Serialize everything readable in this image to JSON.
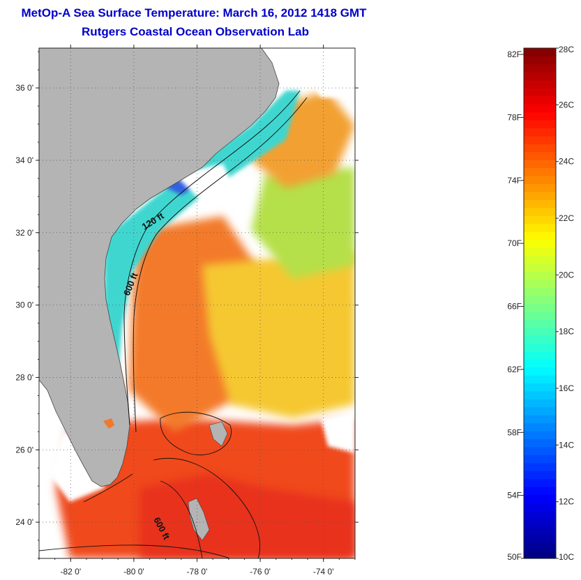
{
  "header": {
    "title": "MetOp-A Sea Surface Temperature:  March 16, 2012 1418 GMT",
    "subtitle": "Rutgers Coastal Ocean Observation Lab"
  },
  "map": {
    "lat_ticks": [
      {
        "value": 36,
        "label": "36 0'"
      },
      {
        "value": 34,
        "label": "34 0'"
      },
      {
        "value": 32,
        "label": "32 0'"
      },
      {
        "value": 30,
        "label": "30 0'"
      },
      {
        "value": 28,
        "label": "28 0'"
      },
      {
        "value": 26,
        "label": "26 0'"
      },
      {
        "value": 24,
        "label": "24 0'"
      }
    ],
    "lon_ticks": [
      {
        "value": -82,
        "label": "-82 0'"
      },
      {
        "value": -80,
        "label": "-80 0'"
      },
      {
        "value": -78,
        "label": "-78 0'"
      },
      {
        "value": -76,
        "label": "-76 0'"
      },
      {
        "value": -74,
        "label": "-74 0'"
      }
    ],
    "lat_range": [
      23.0,
      37.1
    ],
    "lon_range": [
      -83.0,
      -73.0
    ],
    "contour_labels": [
      "120 ft",
      "600 ft",
      "600 ft"
    ],
    "land_color": "#b4b4b4",
    "grid": true
  },
  "colorbar": {
    "min_c": 10,
    "max_c": 28,
    "celsius_labels": [
      "28C",
      "26C",
      "24C",
      "22C",
      "20C",
      "18C",
      "16C",
      "14C",
      "12C",
      "10C"
    ],
    "fahrenheit_labels": [
      "82F",
      "78F",
      "74F",
      "70F",
      "66F",
      "62F",
      "58F",
      "54F",
      "50F"
    ],
    "colormap": "jet"
  }
}
